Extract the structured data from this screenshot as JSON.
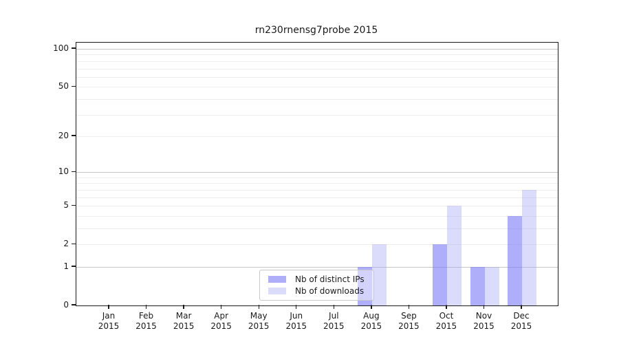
{
  "chart_data": {
    "type": "bar",
    "title": "rn230rnensg7probe 2015",
    "x_axis": {
      "months": [
        "Jan",
        "Feb",
        "Mar",
        "Apr",
        "May",
        "Jun",
        "Jul",
        "Aug",
        "Sep",
        "Oct",
        "Nov",
        "Dec"
      ],
      "year": "2015"
    },
    "y_axis": {
      "scale": "log10(1+y)",
      "tick_labels": [
        "0",
        "1",
        "2",
        "5",
        "10",
        "20",
        "50",
        "100"
      ],
      "tick_values": [
        0,
        1,
        2,
        5,
        10,
        20,
        50,
        100
      ],
      "max": 112,
      "major_gridlines": [
        1,
        10,
        100
      ],
      "minor_gridlines": [
        2,
        3,
        4,
        5,
        6,
        7,
        8,
        9,
        20,
        30,
        40,
        50,
        60,
        70,
        80,
        90
      ],
      "grid_on": true
    },
    "series": [
      {
        "name": "Nb of distinct IPs",
        "color": "#a9a9f8",
        "rgba": "rgba(120,120,248,0.6)",
        "values": [
          0,
          0,
          0,
          0,
          0,
          0,
          0,
          1,
          0,
          2,
          1,
          4
        ]
      },
      {
        "name": "Nb of downloads",
        "color": "#dcdcf8",
        "rgba": "rgba(160,160,245,0.38)",
        "values": [
          0,
          0,
          0,
          0,
          0,
          0,
          0,
          2,
          0,
          5,
          1,
          7
        ]
      }
    ],
    "legend": {
      "position": "inside-lower-center"
    }
  },
  "colors": {
    "background": "#ffffff",
    "grid_minor": "#ededed",
    "grid_major": "#c6c6c6",
    "spine": "#1a1a1a",
    "text": "#1a1a1a",
    "legend_border": "#c9c9c9"
  }
}
